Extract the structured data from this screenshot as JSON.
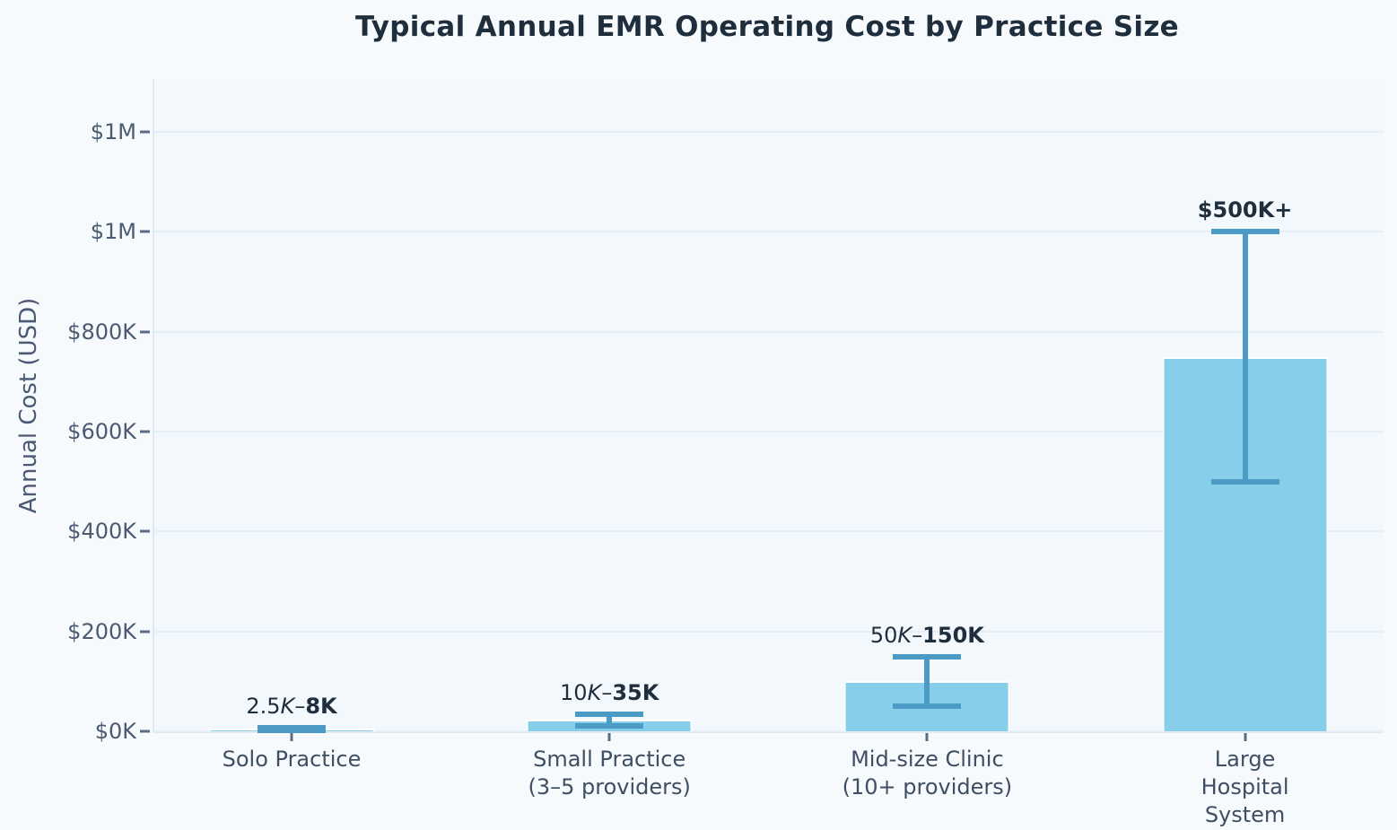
{
  "chart_data": {
    "type": "bar",
    "title": "Typical Annual EMR Operating Cost by Practice Size",
    "ylabel": "Annual Cost (USD)",
    "xlabel": "",
    "categories": [
      "Solo Practice",
      "Small Practice\n(3–5 providers)",
      "Mid-size Clinic\n(10+ providers)",
      "Large Hospital\nSystem"
    ],
    "values_usd_k": [
      5.25,
      22.5,
      100,
      750
    ],
    "error_bars_usd_k": {
      "low": [
        2.5,
        10,
        50,
        500
      ],
      "high": [
        8,
        35,
        150,
        1000
      ]
    },
    "bar_annotations": [
      {
        "segments": [
          {
            "t": "2.5",
            "s": "n"
          },
          {
            "t": "K",
            "s": "i"
          },
          {
            "t": "–",
            "s": "n"
          },
          {
            "t": "8K",
            "s": "b"
          }
        ]
      },
      {
        "segments": [
          {
            "t": "10",
            "s": "n"
          },
          {
            "t": "K",
            "s": "i"
          },
          {
            "t": "–",
            "s": "n"
          },
          {
            "t": "35K",
            "s": "b"
          }
        ]
      },
      {
        "segments": [
          {
            "t": "50",
            "s": "n"
          },
          {
            "t": "K",
            "s": "i"
          },
          {
            "t": "–",
            "s": "n"
          },
          {
            "t": "150K",
            "s": "b"
          }
        ]
      },
      {
        "segments": [
          {
            "t": "$500K+",
            "s": "b"
          }
        ]
      }
    ],
    "y_ticks": [
      {
        "value_k": 0,
        "label": "$0K"
      },
      {
        "value_k": 200,
        "label": "$200K"
      },
      {
        "value_k": 400,
        "label": "$400K"
      },
      {
        "value_k": 600,
        "label": "$600K"
      },
      {
        "value_k": 800,
        "label": "$800K"
      },
      {
        "value_k": 1000,
        "label": "$1M"
      },
      {
        "value_k": 1200,
        "label": "$1M"
      }
    ],
    "ylim_k": [
      0,
      1306
    ],
    "grid": true,
    "legend": "none",
    "colors": {
      "bar_fill": "#87ceeb",
      "bar_edge": "#ffffff",
      "error_bar": "#4c9bc5",
      "title": "#1f2e3d",
      "y_tick_label": "#4a5a73",
      "x_tick_label": "#3e4e63",
      "axis_label": "#4a5a73",
      "annotation": "#1f2e3d",
      "gridline": "#e6eff8",
      "plot_background": "#f3f8fc",
      "figure_background": "#f7fafd"
    }
  }
}
